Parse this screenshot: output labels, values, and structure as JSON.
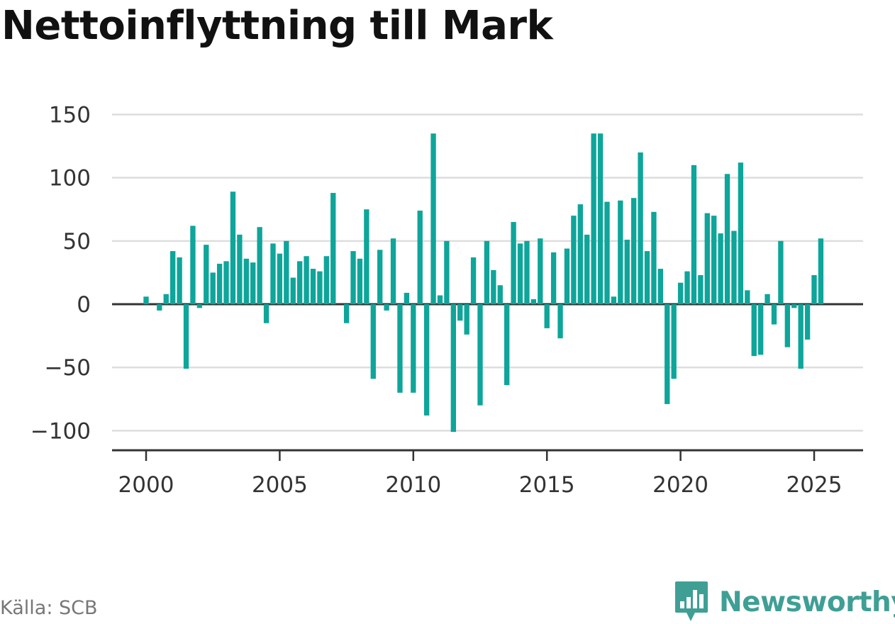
{
  "title": "Nettoinflyttning till Mark",
  "source": "Källa: SCB",
  "brand": "Newsworthy",
  "colors": {
    "bar": "#0ea59a",
    "grid": "#dddddd",
    "axis": "#333333",
    "brand": "#3f9f95"
  },
  "chart_data": {
    "type": "bar",
    "title": "Nettoinflyttning till Mark",
    "xlabel": "",
    "ylabel": "",
    "ylim": [
      -105,
      155
    ],
    "xlim": [
      1999.75,
      2026.75
    ],
    "yticks": [
      150,
      100,
      50,
      0,
      -50,
      -100
    ],
    "ytick_labels": [
      "150",
      "100",
      "50",
      "0",
      "−50",
      "−100"
    ],
    "xticks": [
      2000,
      2005,
      2010,
      2015,
      2020,
      2025
    ],
    "xtick_labels": [
      "2000",
      "2005",
      "2010",
      "2015",
      "2020",
      "2025"
    ],
    "grid": true,
    "x": [
      2000.0,
      2000.25,
      2000.5,
      2000.75,
      2001.0,
      2001.25,
      2001.5,
      2001.75,
      2002.0,
      2002.25,
      2002.5,
      2002.75,
      2003.0,
      2003.25,
      2003.5,
      2003.75,
      2004.0,
      2004.25,
      2004.5,
      2004.75,
      2005.0,
      2005.25,
      2005.5,
      2005.75,
      2006.0,
      2006.25,
      2006.5,
      2006.75,
      2007.0,
      2007.25,
      2007.5,
      2007.75,
      2008.0,
      2008.25,
      2008.5,
      2008.75,
      2009.0,
      2009.25,
      2009.5,
      2009.75,
      2010.0,
      2010.25,
      2010.5,
      2010.75,
      2011.0,
      2011.25,
      2011.5,
      2011.75,
      2012.0,
      2012.25,
      2012.5,
      2012.75,
      2013.0,
      2013.25,
      2013.5,
      2013.75,
      2014.0,
      2014.25,
      2014.5,
      2014.75,
      2015.0,
      2015.25,
      2015.5,
      2015.75,
      2016.0,
      2016.25,
      2016.5,
      2016.75,
      2017.0,
      2017.25,
      2017.5,
      2017.75,
      2018.0,
      2018.25,
      2018.5,
      2018.75,
      2019.0,
      2019.25,
      2019.5,
      2019.75,
      2020.0,
      2020.25,
      2020.5,
      2020.75,
      2021.0,
      2021.25,
      2021.5,
      2021.75,
      2022.0,
      2022.25,
      2022.5,
      2022.75,
      2023.0,
      2023.25,
      2023.5,
      2023.75,
      2024.0,
      2024.25,
      2024.5,
      2024.75,
      2025.0,
      2025.25
    ],
    "values": [
      6,
      0,
      -5,
      8,
      42,
      37,
      -51,
      62,
      -3,
      47,
      25,
      32,
      34,
      89,
      55,
      36,
      33,
      61,
      -15,
      48,
      40,
      50,
      21,
      34,
      38,
      28,
      26,
      38,
      88,
      0,
      -15,
      42,
      36,
      75,
      -59,
      43,
      -5,
      52,
      -70,
      9,
      -70,
      74,
      -88,
      135,
      7,
      50,
      -101,
      -13,
      -24,
      37,
      -80,
      50,
      27,
      15,
      -64,
      65,
      48,
      50,
      4,
      52,
      -19,
      41,
      -27,
      44,
      70,
      79,
      55,
      135,
      135,
      81,
      6,
      82,
      51,
      84,
      120,
      42,
      73,
      28,
      -79,
      -59,
      17,
      26,
      110,
      23,
      72,
      70,
      56,
      103,
      58,
      112,
      11,
      -41,
      -40,
      8,
      -16,
      50,
      -34,
      -3,
      -51,
      -28,
      23,
      52
    ]
  }
}
